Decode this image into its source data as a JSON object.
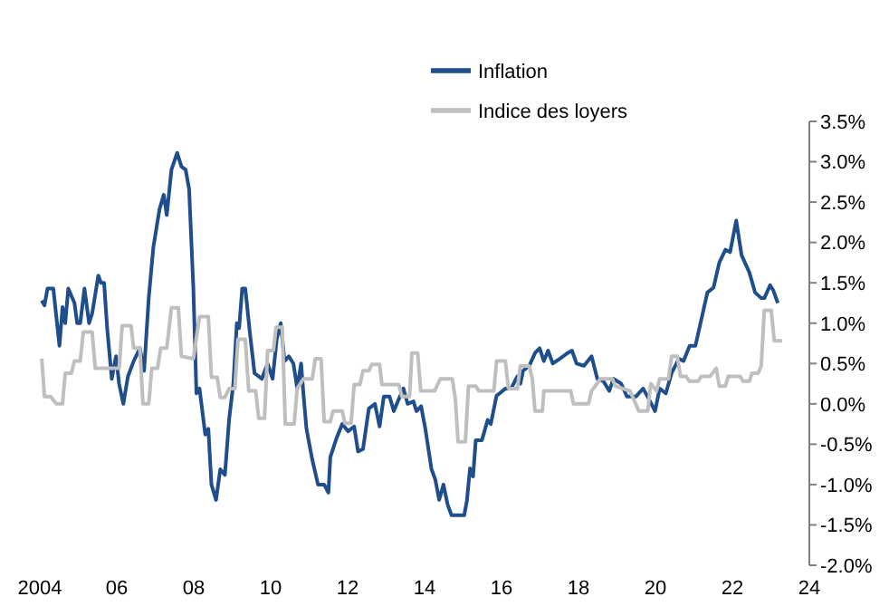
{
  "chart_data": {
    "type": "line",
    "legend": "top",
    "marker": "none",
    "line_style": "solid",
    "grid": false,
    "xlim": [
      2004,
      2024
    ],
    "xticks": [
      {
        "value": 2004,
        "label": "2004"
      },
      {
        "value": 2006,
        "label": "06"
      },
      {
        "value": 2008,
        "label": "08"
      },
      {
        "value": 2010,
        "label": "10"
      },
      {
        "value": 2012,
        "label": "12"
      },
      {
        "value": 2014,
        "label": "14"
      },
      {
        "value": 2016,
        "label": "16"
      },
      {
        "value": 2018,
        "label": "18"
      },
      {
        "value": 2020,
        "label": "20"
      },
      {
        "value": 2022,
        "label": "22"
      },
      {
        "value": 2024,
        "label": "24"
      }
    ],
    "ylim": [
      -2.0,
      3.5
    ],
    "yticks": [
      {
        "value": -2.0,
        "label": "-2.0%"
      },
      {
        "value": -1.5,
        "label": "-1.5%"
      },
      {
        "value": -1.0,
        "label": "-1.0%"
      },
      {
        "value": -0.5,
        "label": "-0.5%"
      },
      {
        "value": 0,
        "label": "0.0%"
      },
      {
        "value": 0.5,
        "label": "0.5%"
      },
      {
        "value": 1.0,
        "label": "1.0%"
      },
      {
        "value": 1.5,
        "label": "1.5%"
      },
      {
        "value": 2.0,
        "label": "2.0%"
      },
      {
        "value": 2.5,
        "label": "2.5%"
      },
      {
        "value": 3.0,
        "label": "3.0%"
      },
      {
        "value": 3.5,
        "label": "3.5%"
      }
    ],
    "series": [
      {
        "name": "Inflation",
        "color": "#1f4e8c",
        "x": [
          2004.05,
          2004.12,
          2004.2,
          2004.35,
          2004.51,
          2004.59,
          2004.66,
          2004.74,
          2004.9,
          2004.97,
          2005.05,
          2005.16,
          2005.28,
          2005.36,
          2005.52,
          2005.59,
          2005.67,
          2005.75,
          2005.87,
          2005.98,
          2006.06,
          2006.17,
          2006.29,
          2006.44,
          2006.6,
          2006.71,
          2006.83,
          2006.95,
          2007.11,
          2007.22,
          2007.3,
          2007.42,
          2007.57,
          2007.68,
          2007.79,
          2007.88,
          2007.99,
          2008.07,
          2008.15,
          2008.3,
          2008.38,
          2008.46,
          2008.58,
          2008.69,
          2008.81,
          2008.92,
          2009.03,
          2009.12,
          2009.18,
          2009.26,
          2009.34,
          2009.46,
          2009.58,
          2009.77,
          2009.92,
          2010.05,
          2010.16,
          2010.26,
          2010.36,
          2010.47,
          2010.59,
          2010.69,
          2010.79,
          2010.85,
          2010.93,
          2011.08,
          2011.23,
          2011.39,
          2011.5,
          2011.55,
          2011.7,
          2011.86,
          2012.01,
          2012.17,
          2012.27,
          2012.4,
          2012.55,
          2012.71,
          2012.83,
          2012.94,
          2013.09,
          2013.2,
          2013.33,
          2013.45,
          2013.56,
          2013.71,
          2013.79,
          2013.91,
          2014.02,
          2014.18,
          2014.28,
          2014.38,
          2014.49,
          2014.6,
          2014.7,
          2015.03,
          2015.1,
          2015.18,
          2015.26,
          2015.33,
          2015.49,
          2015.64,
          2015.72,
          2015.87,
          2015.95,
          2016.1,
          2016.25,
          2016.41,
          2016.49,
          2016.56,
          2016.72,
          2016.87,
          2016.99,
          2017.1,
          2017.21,
          2017.33,
          2017.52,
          2017.72,
          2017.83,
          2017.95,
          2018.14,
          2018.34,
          2018.49,
          2018.65,
          2018.8,
          2018.91,
          2019.11,
          2019.26,
          2019.49,
          2019.68,
          2019.83,
          2019.99,
          2020.11,
          2020.27,
          2020.42,
          2020.61,
          2020.73,
          2020.89,
          2021.04,
          2021.2,
          2021.35,
          2021.51,
          2021.66,
          2021.82,
          2021.94,
          2022.1,
          2022.24,
          2022.44,
          2022.59,
          2022.75,
          2022.83,
          2022.98,
          2023.06,
          2023.18
        ],
        "values": [
          1.28,
          1.22,
          1.43,
          1.43,
          0.72,
          1.2,
          1.0,
          1.43,
          1.25,
          1.0,
          1.0,
          1.43,
          1.0,
          1.12,
          1.59,
          1.5,
          1.5,
          0.94,
          0.31,
          0.59,
          0.25,
          0.0,
          0.34,
          0.53,
          0.69,
          0.41,
          1.31,
          1.94,
          2.41,
          2.59,
          2.34,
          2.9,
          3.11,
          2.94,
          2.9,
          2.66,
          1.44,
          0.13,
          0.19,
          -0.38,
          -0.31,
          -1.0,
          -1.19,
          -0.81,
          -0.88,
          -0.19,
          0.25,
          1.0,
          0.94,
          1.43,
          1.43,
          0.88,
          0.38,
          0.31,
          0.5,
          0.31,
          0.81,
          1.0,
          0.53,
          0.59,
          0.5,
          0.19,
          0.5,
          0.13,
          -0.31,
          -0.69,
          -1.0,
          -1.0,
          -1.1,
          -0.66,
          -0.44,
          -0.25,
          -0.34,
          -0.28,
          -0.59,
          -0.56,
          -0.06,
          0.0,
          -0.28,
          0.09,
          0.09,
          -0.09,
          0.06,
          0.19,
          0.0,
          0.03,
          -0.09,
          -0.03,
          -0.31,
          -0.81,
          -0.94,
          -1.19,
          -1.0,
          -1.25,
          -1.38,
          -1.38,
          -1.2,
          -0.8,
          -0.9,
          -0.45,
          -0.45,
          -0.2,
          -0.25,
          0.1,
          0.13,
          0.19,
          0.19,
          0.34,
          0.25,
          0.41,
          0.47,
          0.63,
          0.69,
          0.53,
          0.66,
          0.5,
          0.56,
          0.63,
          0.66,
          0.5,
          0.47,
          0.59,
          0.31,
          0.28,
          0.16,
          0.31,
          0.25,
          0.09,
          0.09,
          0.19,
          0.06,
          -0.09,
          0.19,
          0.13,
          0.38,
          0.56,
          0.53,
          0.72,
          0.72,
          1.06,
          1.38,
          1.44,
          1.75,
          1.91,
          1.88,
          2.27,
          1.84,
          1.63,
          1.38,
          1.31,
          1.31,
          1.47,
          1.41,
          1.25
        ]
      },
      {
        "name": "Indice des loyers",
        "color": "#bfbfbf",
        "x": [
          2004.05,
          2004.12,
          2004.28,
          2004.43,
          2004.59,
          2004.66,
          2004.82,
          2004.9,
          2005.05,
          2005.13,
          2005.36,
          2005.44,
          2006.06,
          2006.14,
          2006.37,
          2006.44,
          2006.6,
          2006.68,
          2006.83,
          2006.91,
          2007.06,
          2007.14,
          2007.3,
          2007.42,
          2007.6,
          2007.68,
          2007.99,
          2008.15,
          2008.38,
          2008.46,
          2008.61,
          2008.69,
          2008.81,
          2008.92,
          2009.07,
          2009.15,
          2009.34,
          2009.43,
          2009.61,
          2009.69,
          2009.84,
          2009.92,
          2010.07,
          2010.14,
          2010.3,
          2010.38,
          2010.61,
          2010.69,
          2010.85,
          2011.08,
          2011.16,
          2011.31,
          2011.39,
          2011.55,
          2011.62,
          2011.86,
          2011.93,
          2012.09,
          2012.17,
          2012.32,
          2012.4,
          2012.55,
          2012.63,
          2012.83,
          2012.89,
          2013.33,
          2013.41,
          2013.61,
          2013.67,
          2013.82,
          2013.9,
          2014.26,
          2014.41,
          2014.72,
          2014.8,
          2014.87,
          2015.06,
          2015.14,
          2015.33,
          2015.41,
          2015.8,
          2015.87,
          2016.1,
          2016.18,
          2016.41,
          2016.49,
          2016.72,
          2016.8,
          2016.87,
          2017.06,
          2017.1,
          2017.8,
          2017.87,
          2018.26,
          2018.34,
          2018.57,
          2018.88,
          2018.96,
          2019.34,
          2019.57,
          2019.8,
          2019.88,
          2020.03,
          2020.11,
          2020.34,
          2020.42,
          2020.57,
          2020.65,
          2020.8,
          2020.88,
          2021.11,
          2021.19,
          2021.42,
          2021.58,
          2021.66,
          2021.82,
          2021.89,
          2022.2,
          2022.28,
          2022.44,
          2022.51,
          2022.67,
          2022.75,
          2022.83,
          2023.01,
          2023.09,
          2023.29
        ],
        "values": [
          0.56,
          0.09,
          0.09,
          0.0,
          0.0,
          0.38,
          0.38,
          0.53,
          0.53,
          0.89,
          0.89,
          0.44,
          0.44,
          0.97,
          0.97,
          0.69,
          0.69,
          0.0,
          0.0,
          0.44,
          0.44,
          0.69,
          0.69,
          1.19,
          1.19,
          0.59,
          0.56,
          1.08,
          1.08,
          0.33,
          0.33,
          0.08,
          0.08,
          0.19,
          0.19,
          0.8,
          0.8,
          0.16,
          0.16,
          -0.18,
          -0.18,
          0.66,
          0.66,
          0.95,
          0.95,
          -0.25,
          -0.25,
          0.19,
          0.31,
          0.31,
          0.56,
          0.56,
          -0.22,
          -0.22,
          -0.09,
          -0.09,
          -0.24,
          -0.24,
          0.24,
          0.24,
          0.41,
          0.41,
          0.49,
          0.49,
          0.24,
          0.24,
          0.09,
          0.09,
          0.63,
          0.63,
          0.16,
          0.16,
          0.31,
          0.31,
          0.06,
          -0.47,
          -0.47,
          0.22,
          0.22,
          0.16,
          0.16,
          0.53,
          0.53,
          0.19,
          0.19,
          0.47,
          0.47,
          0.31,
          -0.09,
          -0.09,
          0.16,
          0.16,
          0.0,
          0.0,
          0.16,
          0.31,
          0.31,
          0.22,
          0.16,
          -0.09,
          -0.09,
          0.25,
          0.16,
          0.31,
          0.31,
          0.59,
          0.59,
          0.34,
          0.34,
          0.28,
          0.28,
          0.34,
          0.34,
          0.44,
          0.22,
          0.22,
          0.34,
          0.34,
          0.28,
          0.28,
          0.38,
          0.38,
          0.47,
          1.16,
          1.16,
          0.78,
          0.78
        ]
      }
    ]
  }
}
